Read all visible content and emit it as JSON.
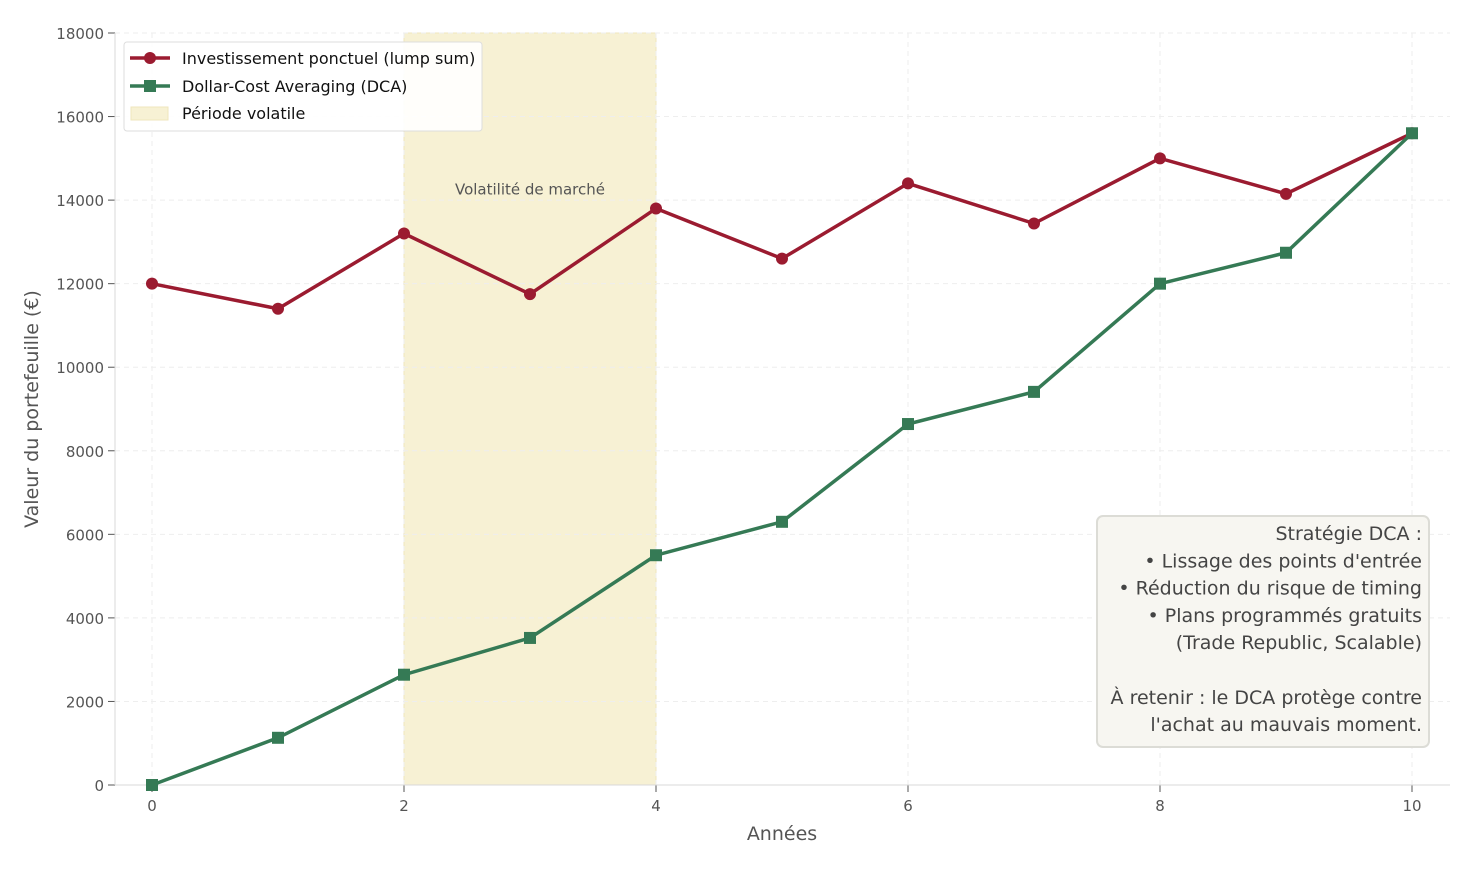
{
  "chart_data": {
    "type": "line",
    "xlabel": "Années",
    "ylabel": "Valeur du portefeuille (€)",
    "xlim": [
      -0.3,
      10.3
    ],
    "ylim": [
      0,
      18000
    ],
    "xticks": [
      0,
      2,
      4,
      6,
      8,
      10
    ],
    "yticks": [
      0,
      2000,
      4000,
      6000,
      8000,
      10000,
      12000,
      14000,
      16000,
      18000
    ],
    "grid": true,
    "legend_position": "top-left",
    "x": [
      0,
      1,
      2,
      3,
      4,
      5,
      6,
      7,
      8,
      9,
      10
    ],
    "series": [
      {
        "name": "Investissement ponctuel (lump sum)",
        "color": "#9b1b30",
        "marker": "circle",
        "values": [
          12000,
          11400,
          13200,
          11750,
          13800,
          12600,
          14400,
          13440,
          15000,
          14150,
          15600
        ]
      },
      {
        "name": "Dollar-Cost Averaging (DCA)",
        "color": "#357a55",
        "marker": "square",
        "values": [
          0,
          1130,
          2640,
          3520,
          5500,
          6300,
          8640,
          9410,
          12000,
          12740,
          15600
        ]
      }
    ],
    "shaded_region": {
      "name": "Période volatile",
      "x_range": [
        2,
        4
      ],
      "color": "#f7f1d4",
      "annotation": "Volatilité de marché",
      "annotation_y": 14300
    },
    "textbox": {
      "lines": [
        "Stratégie DCA :",
        "• Lissage des points d'entrée",
        "• Réduction du risque de timing",
        "• Plans programmés gratuits",
        "(Trade Republic, Scalable)",
        "",
        "À retenir : le DCA protège contre",
        "l'achat au mauvais moment."
      ]
    }
  }
}
